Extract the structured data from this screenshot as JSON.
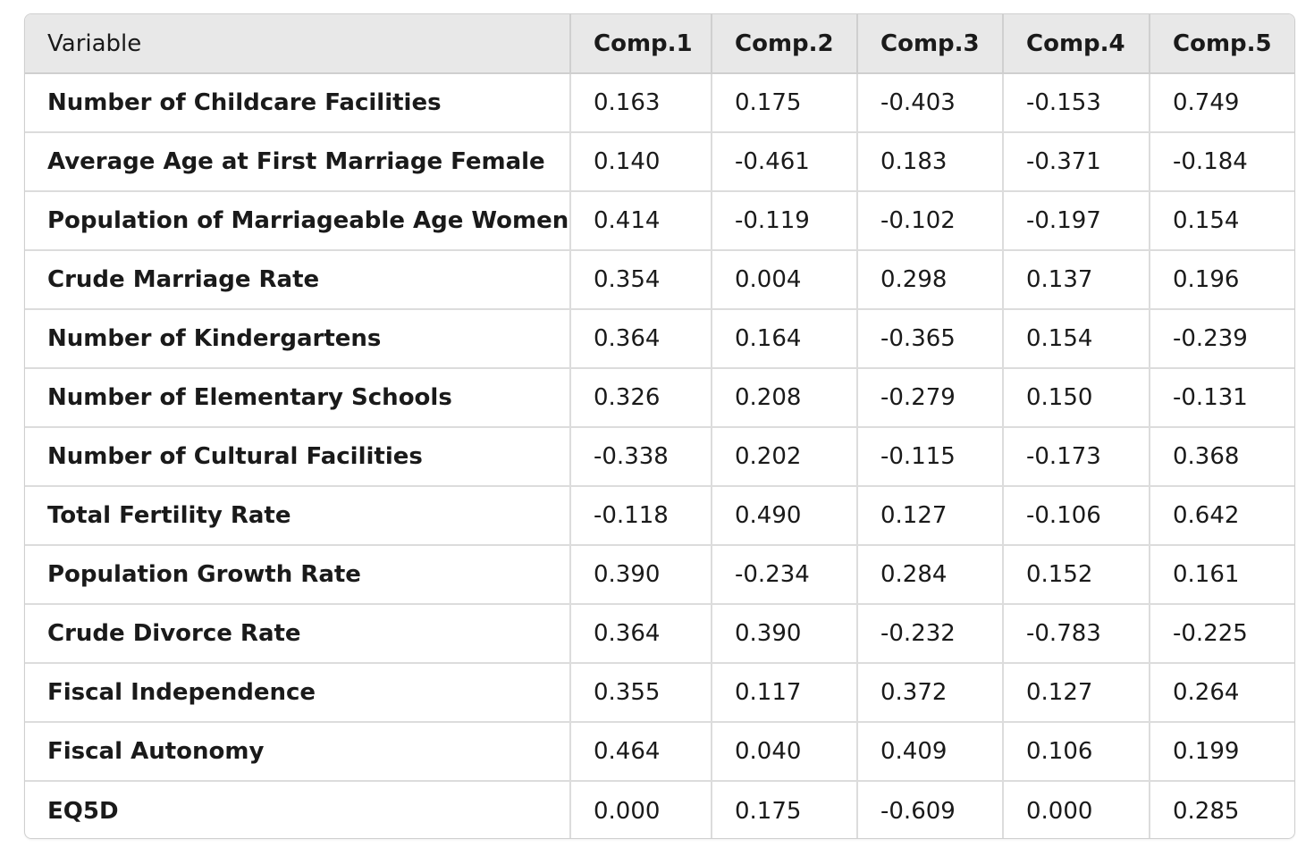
{
  "chart_data": {
    "type": "table",
    "columns": [
      "Variable",
      "Comp.1",
      "Comp.2",
      "Comp.3",
      "Comp.4",
      "Comp.5"
    ],
    "rows": [
      {
        "variable": "Number of Childcare Facilities",
        "values": [
          "0.163",
          "0.175",
          "-0.403",
          "-0.153",
          "0.749"
        ]
      },
      {
        "variable": "Average Age at First Marriage Female",
        "values": [
          "0.140",
          "-0.461",
          "0.183",
          "-0.371",
          "-0.184"
        ]
      },
      {
        "variable": "Population of Marriageable Age Women",
        "values": [
          "0.414",
          "-0.119",
          "-0.102",
          "-0.197",
          "0.154"
        ]
      },
      {
        "variable": "Crude Marriage Rate",
        "values": [
          "0.354",
          "0.004",
          "0.298",
          "0.137",
          "0.196"
        ]
      },
      {
        "variable": "Number of Kindergartens",
        "values": [
          "0.364",
          "0.164",
          "-0.365",
          "0.154",
          "-0.239"
        ]
      },
      {
        "variable": "Number of Elementary Schools",
        "values": [
          "0.326",
          "0.208",
          "-0.279",
          "0.150",
          "-0.131"
        ]
      },
      {
        "variable": "Number of Cultural Facilities",
        "values": [
          "-0.338",
          "0.202",
          "-0.115",
          "-0.173",
          "0.368"
        ]
      },
      {
        "variable": "Total Fertility Rate",
        "values": [
          "-0.118",
          "0.490",
          "0.127",
          "-0.106",
          "0.642"
        ]
      },
      {
        "variable": "Population Growth Rate",
        "values": [
          "0.390",
          "-0.234",
          "0.284",
          "0.152",
          "0.161"
        ]
      },
      {
        "variable": "Crude Divorce Rate",
        "values": [
          "0.364",
          "0.390",
          "-0.232",
          "-0.783",
          "-0.225"
        ]
      },
      {
        "variable": "Fiscal Independence",
        "values": [
          "0.355",
          "0.117",
          "0.372",
          "0.127",
          "0.264"
        ]
      },
      {
        "variable": "Fiscal Autonomy",
        "values": [
          "0.464",
          "0.040",
          "0.409",
          "0.106",
          "0.199"
        ]
      },
      {
        "variable": "EQ5D",
        "values": [
          "0.000",
          "0.175",
          "-0.609",
          "0.000",
          "0.285"
        ]
      }
    ]
  },
  "colors": {
    "header_bg": "#e8e8e8",
    "border": "#dcdcdc",
    "text": "#1a1a1a"
  }
}
